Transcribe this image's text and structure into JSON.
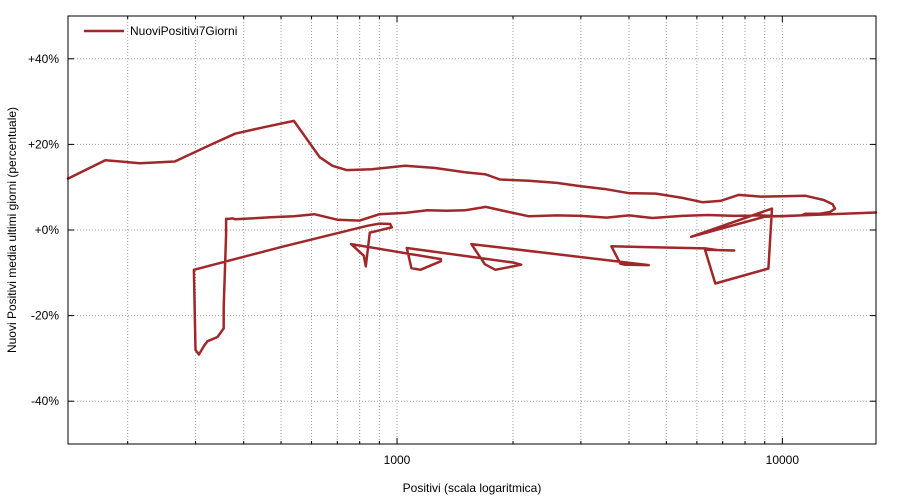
{
  "chart_data": {
    "type": "line",
    "xlabel": "Positivi (scala logaritmica)",
    "ylabel": "Nuovi Positivi media ultimi giorni (percentuale)",
    "xscale": "log",
    "xlim": [
      140,
      17500
    ],
    "ylim": [
      -50,
      50
    ],
    "grid": true,
    "legend_position": "top-left",
    "x_ticks": [
      {
        "value": 1000,
        "label": "1000"
      },
      {
        "value": 10000,
        "label": "10000"
      }
    ],
    "y_ticks": [
      {
        "value": 40,
        "label": "+40%"
      },
      {
        "value": 20,
        "label": "+20%"
      },
      {
        "value": 0,
        "label": "+0%"
      },
      {
        "value": -20,
        "label": "-20%"
      },
      {
        "value": -40,
        "label": "-40%"
      }
    ],
    "colors": {
      "line": "#a0282a",
      "grid": "#a0a0a0",
      "frame": "#000000"
    },
    "series": [
      {
        "name": "NuoviPositivi7Giorni",
        "points": [
          [
            140,
            12
          ],
          [
            175,
            16.3
          ],
          [
            215,
            15.6
          ],
          [
            265,
            16
          ],
          [
            330,
            20
          ],
          [
            380,
            22.5
          ],
          [
            450,
            24
          ],
          [
            540,
            25.5
          ],
          [
            630,
            17
          ],
          [
            680,
            15
          ],
          [
            740,
            14
          ],
          [
            860,
            14.2
          ],
          [
            1050,
            15
          ],
          [
            1250,
            14.5
          ],
          [
            1500,
            13.5
          ],
          [
            1700,
            13
          ],
          [
            1850,
            11.8
          ],
          [
            2200,
            11.5
          ],
          [
            2600,
            11
          ],
          [
            3000,
            10.2
          ],
          [
            3500,
            9.5
          ],
          [
            4000,
            8.6
          ],
          [
            4700,
            8.5
          ],
          [
            5500,
            7.5
          ],
          [
            6200,
            6.5
          ],
          [
            6900,
            6.8
          ],
          [
            7700,
            8.2
          ],
          [
            8800,
            7.8
          ],
          [
            10000,
            7.9
          ],
          [
            11500,
            8
          ],
          [
            12800,
            7
          ],
          [
            13500,
            6
          ],
          [
            13700,
            5
          ],
          [
            13300,
            4.2
          ],
          [
            12500,
            3.8
          ],
          [
            11500,
            3.8
          ],
          [
            11200,
            3.4
          ],
          [
            10000,
            3.2
          ],
          [
            8800,
            3.4
          ],
          [
            7500,
            3.3
          ],
          [
            6400,
            3.5
          ],
          [
            5500,
            3.3
          ],
          [
            4600,
            2.8
          ],
          [
            4000,
            3.4
          ],
          [
            3500,
            2.9
          ],
          [
            3000,
            3.3
          ],
          [
            2600,
            3.4
          ],
          [
            2200,
            3.2
          ],
          [
            1950,
            4.2
          ],
          [
            1700,
            5.4
          ],
          [
            1500,
            4.6
          ],
          [
            1350,
            4.5
          ],
          [
            1200,
            4.6
          ],
          [
            1050,
            4
          ],
          [
            900,
            3.7
          ],
          [
            800,
            2.2
          ],
          [
            700,
            2.4
          ],
          [
            610,
            3.7
          ],
          [
            540,
            3.2
          ],
          [
            470,
            3
          ],
          [
            420,
            2.7
          ],
          [
            380,
            2.5
          ],
          [
            375,
            2.7
          ],
          [
            365,
            2.6
          ],
          [
            360,
            2.6
          ],
          [
            360,
            -1
          ],
          [
            355,
            -18
          ],
          [
            355,
            -23
          ],
          [
            342,
            -25
          ],
          [
            322,
            -26
          ],
          [
            316,
            -27
          ],
          [
            306,
            -29.1
          ],
          [
            300,
            -28
          ],
          [
            297,
            -9.3
          ],
          [
            500,
            -4
          ],
          [
            840,
            1
          ],
          [
            900,
            1.5
          ],
          [
            960,
            1.4
          ],
          [
            970,
            0.6
          ],
          [
            850,
            -0.6
          ],
          [
            830,
            -8.5
          ],
          [
            820,
            -6
          ],
          [
            760,
            -3.3
          ],
          [
            1300,
            -6.8
          ],
          [
            1300,
            -7.3
          ],
          [
            1150,
            -9.3
          ],
          [
            1090,
            -8.9
          ],
          [
            1060,
            -4.2
          ],
          [
            2000,
            -7.6
          ],
          [
            2100,
            -8.1
          ],
          [
            1800,
            -9.3
          ],
          [
            1690,
            -8
          ],
          [
            1560,
            -3.3
          ],
          [
            4500,
            -8.2
          ],
          [
            3900,
            -8.1
          ],
          [
            3800,
            -7.9
          ],
          [
            3600,
            -3.8
          ],
          [
            6300,
            -4.3
          ],
          [
            6800,
            -4.7
          ],
          [
            7500,
            -4.8
          ],
          [
            6300,
            -4.6
          ],
          [
            6700,
            -12.5
          ],
          [
            9200,
            -9
          ],
          [
            9400,
            5
          ],
          [
            5800,
            -1.6
          ],
          [
            9000,
            3.1
          ],
          [
            17500,
            4.1
          ]
        ]
      }
    ]
  }
}
